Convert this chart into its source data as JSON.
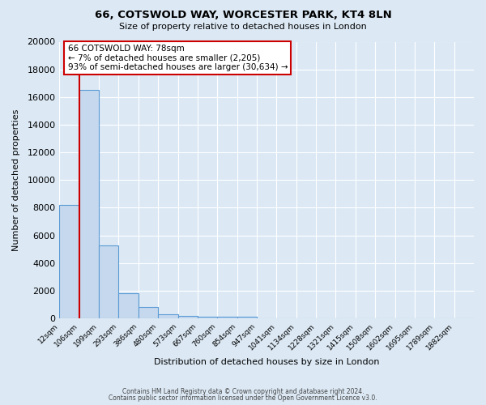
{
  "title": "66, COTSWOLD WAY, WORCESTER PARK, KT4 8LN",
  "subtitle": "Size of property relative to detached houses in London",
  "xlabel": "Distribution of detached houses by size in London",
  "ylabel": "Number of detached properties",
  "bar_labels": [
    "12sqm",
    "106sqm",
    "199sqm",
    "293sqm",
    "386sqm",
    "480sqm",
    "573sqm",
    "667sqm",
    "760sqm",
    "854sqm",
    "947sqm",
    "1041sqm",
    "1134sqm",
    "1228sqm",
    "1321sqm",
    "1415sqm",
    "1508sqm",
    "1602sqm",
    "1695sqm",
    "1789sqm",
    "1882sqm"
  ],
  "bar_values": [
    8200,
    16500,
    5300,
    1800,
    800,
    300,
    180,
    150,
    100,
    100,
    0,
    0,
    0,
    0,
    0,
    0,
    0,
    0,
    0,
    0,
    0
  ],
  "bar_color": "#c5d8ed",
  "bar_edge_color": "#5b9bd5",
  "bar_edge_width": 0.8,
  "background_color": "#dce9f5",
  "grid_color": "#ffffff",
  "red_line_color": "#cc0000",
  "red_line_x": 1.0,
  "annotation_text": "66 COTSWOLD WAY: 78sqm\n← 7% of detached houses are smaller (2,205)\n93% of semi-detached houses are larger (30,634) →",
  "annotation_box_color": "#ffffff",
  "annotation_box_edge_color": "#cc0000",
  "ylim": [
    0,
    20000
  ],
  "yticks": [
    0,
    2000,
    4000,
    6000,
    8000,
    10000,
    12000,
    14000,
    16000,
    18000,
    20000
  ],
  "footer_line1": "Contains HM Land Registry data © Crown copyright and database right 2024.",
  "footer_line2": "Contains public sector information licensed under the Open Government Licence v3.0."
}
